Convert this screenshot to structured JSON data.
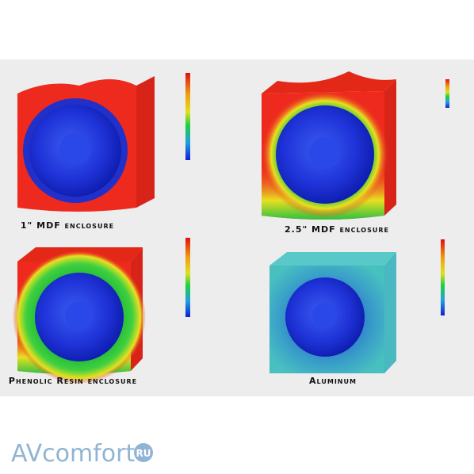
{
  "panels": [
    {
      "label": "1\" MDF enclosure"
    },
    {
      "label": "2.5\" MDF enclosure"
    },
    {
      "label": "Phenolic Resin  enclosure"
    },
    {
      "label": "Aluminum"
    }
  ],
  "watermark": {
    "brand": "AVcomfort",
    "suffix": "RU"
  }
}
